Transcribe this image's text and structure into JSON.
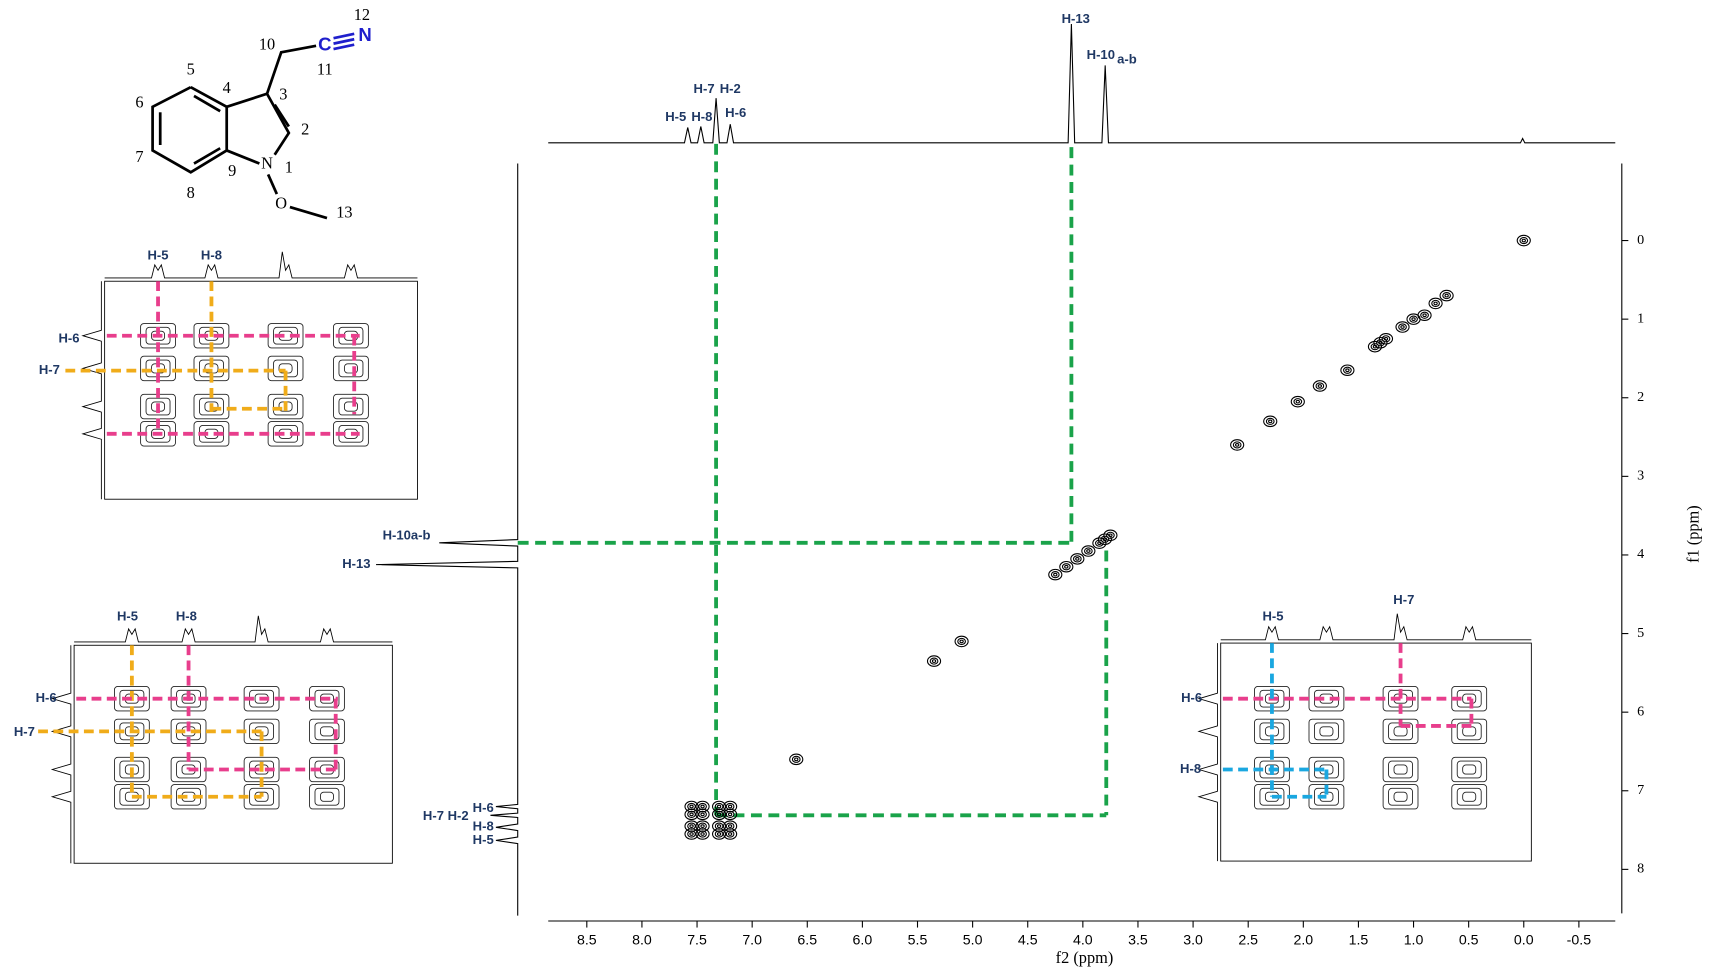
{
  "molecule": {
    "atoms": [
      "N",
      "O",
      "C",
      "N"
    ],
    "numbers": [
      "1",
      "2",
      "3",
      "4",
      "5",
      "6",
      "7",
      "8",
      "9",
      "10",
      "11",
      "12",
      "13"
    ]
  },
  "chart_data": {
    "type": "contour",
    "xlabel": "f2 (ppm)",
    "ylabel": "f1 (ppm)",
    "xlim": [
      8.85,
      -0.83
    ],
    "xticks": [
      8.5,
      {
        "value": 8,
        "label": "8.0"
      },
      7.5,
      {
        "value": 7,
        "label": "7.0"
      },
      6.5,
      {
        "value": 6,
        "label": "6.0"
      },
      5.5,
      {
        "value": 5,
        "label": "5.0"
      },
      4.5,
      {
        "value": 4,
        "label": "4.0"
      },
      3.5,
      {
        "value": 3,
        "label": "3.0"
      },
      2.5,
      {
        "value": 2,
        "label": "2.0"
      },
      1.5,
      {
        "value": 1,
        "label": "1.0"
      },
      0.5,
      {
        "value": 0,
        "label": "0.0"
      },
      -0.5
    ],
    "ylim": [
      -0.98,
      8.56
    ],
    "yticks": [
      0,
      1,
      2,
      3,
      4,
      5,
      6,
      7,
      8
    ],
    "color": "#000000",
    "peaks": {
      "x": [
        0.0,
        0.7,
        0.8,
        0.9,
        1.0,
        1.1,
        1.25,
        1.3,
        1.35,
        1.6,
        1.85,
        2.05,
        2.3,
        2.6,
        3.75,
        3.8,
        3.85,
        3.95,
        4.05,
        4.15,
        4.25,
        5.1,
        5.35,
        6.6,
        7.55,
        7.45,
        7.3,
        7.2,
        7.55,
        7.45,
        7.3,
        7.2,
        7.55,
        7.45,
        7.3,
        7.2,
        7.55,
        7.45,
        7.3,
        7.2
      ],
      "y": [
        0.0,
        0.7,
        0.8,
        0.95,
        1.0,
        1.1,
        1.25,
        1.3,
        1.35,
        1.65,
        1.85,
        2.05,
        2.3,
        2.6,
        3.75,
        3.8,
        3.85,
        3.95,
        4.05,
        4.15,
        4.25,
        5.1,
        5.35,
        6.6,
        7.2,
        7.2,
        7.2,
        7.2,
        7.3,
        7.3,
        7.3,
        7.3,
        7.45,
        7.45,
        7.45,
        7.45,
        7.55,
        7.55,
        7.55,
        7.55
      ]
    },
    "top_labels": [
      "H-5",
      "H-8",
      "H-7",
      "H-2",
      "H-6",
      "H-13",
      "H-10"
    ],
    "top_label_sub": "a-b",
    "side_labels": [
      "H-10a-b",
      "H-13",
      "H-7 H-2",
      "H-6",
      "H-8",
      "H-5"
    ]
  },
  "insets": [
    {
      "top_labels": [
        "H-5",
        "H-8"
      ],
      "side_labels": [
        "H-6",
        "H-7"
      ]
    },
    {
      "top_labels": [
        "H-5",
        "H-8"
      ],
      "side_labels": [
        "H-6",
        "H-7"
      ]
    },
    {
      "top_labels": [
        "H-5",
        "H-7"
      ],
      "side_labels": [
        "H-6",
        "H-8"
      ]
    }
  ]
}
